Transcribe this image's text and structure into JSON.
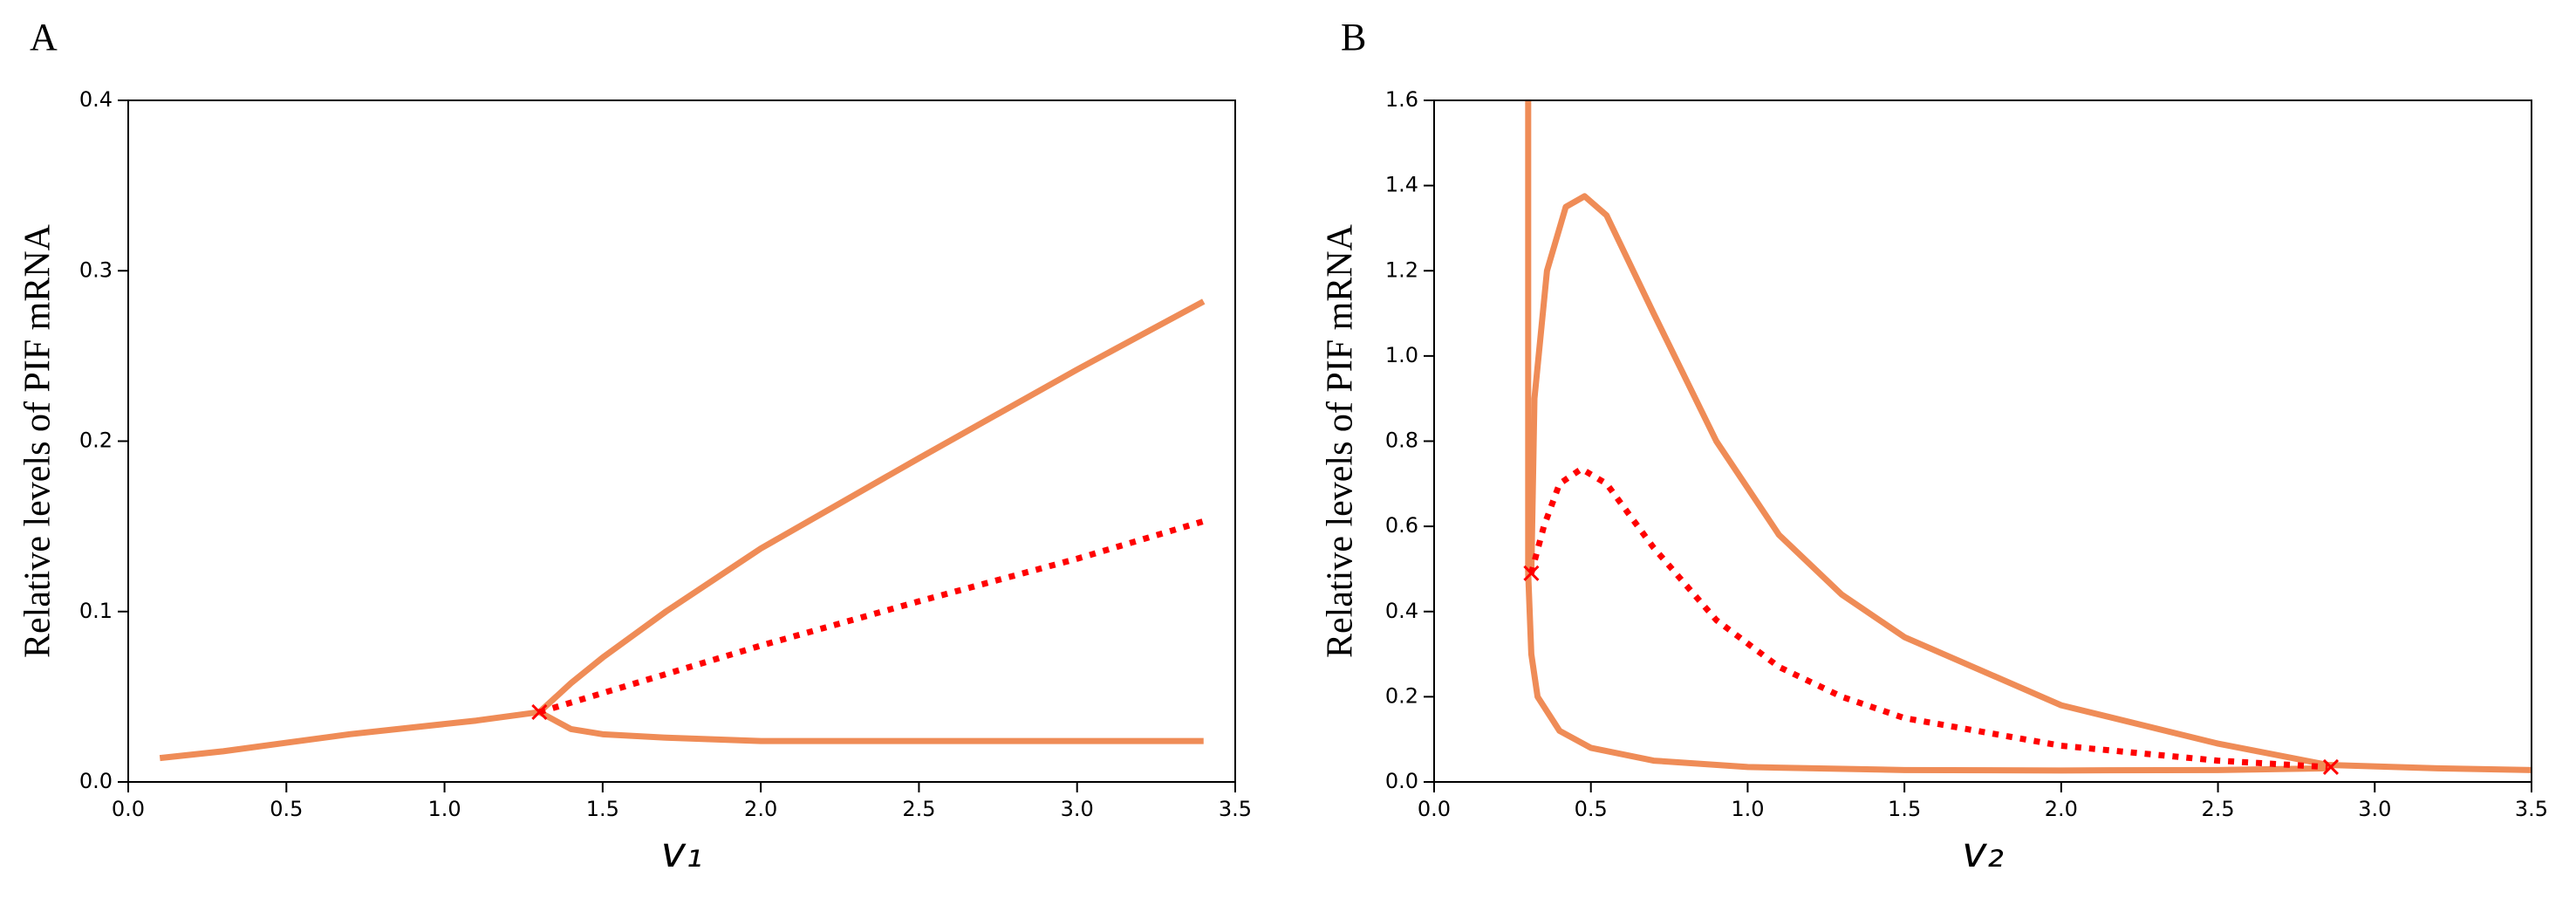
{
  "chart_data": [
    {
      "type": "line",
      "panel": "A",
      "y_label": "Relative levels of PIF mRNA",
      "x_label": "v₁",
      "xlim": [
        0,
        3.5
      ],
      "ylim": [
        0,
        0.4
      ],
      "xticks": [
        {
          "value": 0,
          "label": "0.0"
        },
        0.5,
        {
          "value": 1,
          "label": "1.0"
        },
        1.5,
        {
          "value": 2,
          "label": "2.0"
        },
        2.5,
        {
          "value": 3,
          "label": "3.0"
        },
        3.5
      ],
      "yticks": [
        {
          "value": 0,
          "label": "0.0"
        },
        0.1,
        0.2,
        0.3,
        0.4
      ],
      "series": [
        {
          "color": "#ef8c57",
          "style": "solid",
          "x": [
            0.1,
            0.3,
            0.5,
            0.7,
            0.9,
            1.1,
            1.3,
            1.4,
            1.5,
            1.7,
            2.0,
            2.5,
            3.0,
            3.4
          ],
          "values": [
            0.014,
            0.018,
            0.023,
            0.028,
            0.032,
            0.036,
            0.041,
            0.031,
            0.028,
            0.026,
            0.024,
            0.024,
            0.024,
            0.024
          ]
        },
        {
          "color": "#ef8c57",
          "style": "solid",
          "x": [
            1.3,
            1.4,
            1.5,
            1.7,
            2.0,
            2.5,
            3.0,
            3.4
          ],
          "values": [
            0.041,
            0.058,
            0.073,
            0.1,
            0.137,
            0.19,
            0.242,
            0.282
          ]
        },
        {
          "color": "#ff0000",
          "style": "dotted",
          "x": [
            1.3,
            2.0,
            2.5,
            3.0,
            3.4
          ],
          "values": [
            0.041,
            0.08,
            0.106,
            0.131,
            0.153
          ]
        }
      ],
      "points": {
        "color": "#ff0000",
        "x": [
          1.3
        ],
        "values": [
          0.041
        ]
      }
    },
    {
      "type": "line",
      "panel": "B",
      "y_label": "Relative levels of PIF mRNA",
      "x_label": "v₂",
      "xlim": [
        0,
        3.5
      ],
      "ylim": [
        0,
        1.6
      ],
      "xticks": [
        {
          "value": 0,
          "label": "0.0"
        },
        0.5,
        {
          "value": 1,
          "label": "1.0"
        },
        1.5,
        {
          "value": 2,
          "label": "2.0"
        },
        2.5,
        {
          "value": 3,
          "label": "3.0"
        },
        3.5
      ],
      "yticks": [
        {
          "value": 0,
          "label": "0.0"
        },
        0.2,
        0.4,
        0.6,
        0.8,
        {
          "value": 1,
          "label": "1.0"
        },
        1.2,
        1.4,
        1.6
      ],
      "series": [
        {
          "color": "#ef8c57",
          "style": "solid",
          "x": [
            0.3,
            0.3
          ],
          "values": [
            0.49,
            1.6
          ]
        },
        {
          "color": "#ef8c57",
          "style": "solid",
          "x": [
            0.31,
            0.32,
            0.36,
            0.42,
            0.48,
            0.55,
            0.7,
            0.9,
            1.1,
            1.3,
            1.5,
            2.0,
            2.5,
            2.85,
            3.2,
            3.5
          ],
          "values": [
            0.49,
            0.9,
            1.2,
            1.35,
            1.375,
            1.33,
            1.1,
            0.8,
            0.58,
            0.44,
            0.34,
            0.18,
            0.09,
            0.04,
            0.032,
            0.028
          ]
        },
        {
          "color": "#ef8c57",
          "style": "solid",
          "x": [
            0.3,
            0.31,
            0.33,
            0.4,
            0.5,
            0.7,
            1.0,
            1.5,
            2.0,
            2.5,
            2.85
          ],
          "values": [
            0.49,
            0.3,
            0.2,
            0.12,
            0.08,
            0.05,
            0.035,
            0.028,
            0.027,
            0.028,
            0.032
          ]
        },
        {
          "color": "#ff0000",
          "style": "dotted",
          "x": [
            0.31,
            0.35,
            0.4,
            0.47,
            0.55,
            0.7,
            0.9,
            1.1,
            1.3,
            1.5,
            2.0,
            2.5,
            2.85
          ],
          "values": [
            0.49,
            0.6,
            0.7,
            0.735,
            0.7,
            0.55,
            0.38,
            0.27,
            0.2,
            0.15,
            0.085,
            0.05,
            0.035
          ]
        }
      ],
      "points": {
        "color": "#ff0000",
        "x": [
          0.31,
          2.86
        ],
        "values": [
          0.49,
          0.035
        ]
      }
    }
  ]
}
